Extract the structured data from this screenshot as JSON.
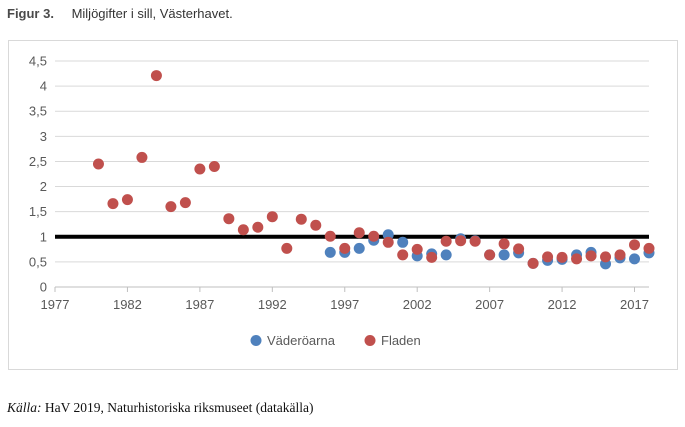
{
  "figure": {
    "label": "Figur 3.",
    "title": "Miljögifter i sill, Västerhavet."
  },
  "source": {
    "prefix": "Källa:",
    "text": "HaV 2019,  Naturhistoriska riksmuseet (datakälla)"
  },
  "chart_data": {
    "type": "scatter",
    "title": "",
    "xlabel": "",
    "ylabel": "",
    "xlim": [
      1977,
      2018
    ],
    "ylim": [
      0,
      4.5
    ],
    "x_ticks": [
      1977,
      1982,
      1987,
      1992,
      1997,
      2002,
      2007,
      2012,
      2017
    ],
    "x_tick_labels": [
      "1977",
      "1982",
      "1987",
      "1992",
      "1997",
      "2002",
      "2007",
      "2012",
      "2017"
    ],
    "y_ticks": [
      0,
      0.5,
      1,
      1.5,
      2,
      2.5,
      3,
      3.5,
      4,
      4.5
    ],
    "y_tick_labels": [
      "0",
      "0,5",
      "1",
      "1,5",
      "2",
      "2,5",
      "3",
      "3,5",
      "4",
      "4,5"
    ],
    "grid": "horizontal",
    "legend_position": "bottom",
    "reference_line": {
      "y": 1,
      "color": "#000000"
    },
    "series": [
      {
        "name": "Väderöarna",
        "color": "#4f81bd",
        "points": [
          [
            1996,
            0.69
          ],
          [
            1997,
            0.69
          ],
          [
            1998,
            0.77
          ],
          [
            1999,
            0.93
          ],
          [
            2000,
            1.04
          ],
          [
            2001,
            0.89
          ],
          [
            2002,
            0.62
          ],
          [
            2003,
            0.66
          ],
          [
            2004,
            0.64
          ],
          [
            2005,
            0.96
          ],
          [
            2006,
            0.92
          ],
          [
            2007,
            0.64
          ],
          [
            2008,
            0.64
          ],
          [
            2009,
            0.68
          ],
          [
            2010,
            0.47
          ],
          [
            2011,
            0.53
          ],
          [
            2012,
            0.55
          ],
          [
            2013,
            0.64
          ],
          [
            2014,
            0.69
          ],
          [
            2015,
            0.46
          ],
          [
            2016,
            0.58
          ],
          [
            2017,
            0.56
          ],
          [
            2018,
            0.68
          ]
        ]
      },
      {
        "name": "Fladen",
        "color": "#c0504d",
        "points": [
          [
            1980,
            2.45
          ],
          [
            1981,
            1.66
          ],
          [
            1982,
            1.74
          ],
          [
            1983,
            2.58
          ],
          [
            1984,
            4.21
          ],
          [
            1985,
            1.6
          ],
          [
            1986,
            1.68
          ],
          [
            1987,
            2.35
          ],
          [
            1988,
            2.4
          ],
          [
            1989,
            1.36
          ],
          [
            1990,
            1.14
          ],
          [
            1991,
            1.19
          ],
          [
            1992,
            1.4
          ],
          [
            1993,
            0.77
          ],
          [
            1994,
            1.35
          ],
          [
            1995,
            1.23
          ],
          [
            1996,
            1.01
          ],
          [
            1997,
            0.77
          ],
          [
            1998,
            1.08
          ],
          [
            1999,
            1.01
          ],
          [
            2000,
            0.89
          ],
          [
            2001,
            0.64
          ],
          [
            2002,
            0.75
          ],
          [
            2003,
            0.59
          ],
          [
            2004,
            0.91
          ],
          [
            2005,
            0.92
          ],
          [
            2006,
            0.91
          ],
          [
            2007,
            0.64
          ],
          [
            2008,
            0.86
          ],
          [
            2009,
            0.76
          ],
          [
            2010,
            0.47
          ],
          [
            2011,
            0.6
          ],
          [
            2012,
            0.59
          ],
          [
            2013,
            0.56
          ],
          [
            2014,
            0.62
          ],
          [
            2015,
            0.6
          ],
          [
            2016,
            0.64
          ],
          [
            2017,
            0.84
          ],
          [
            2018,
            0.77
          ]
        ]
      }
    ]
  }
}
